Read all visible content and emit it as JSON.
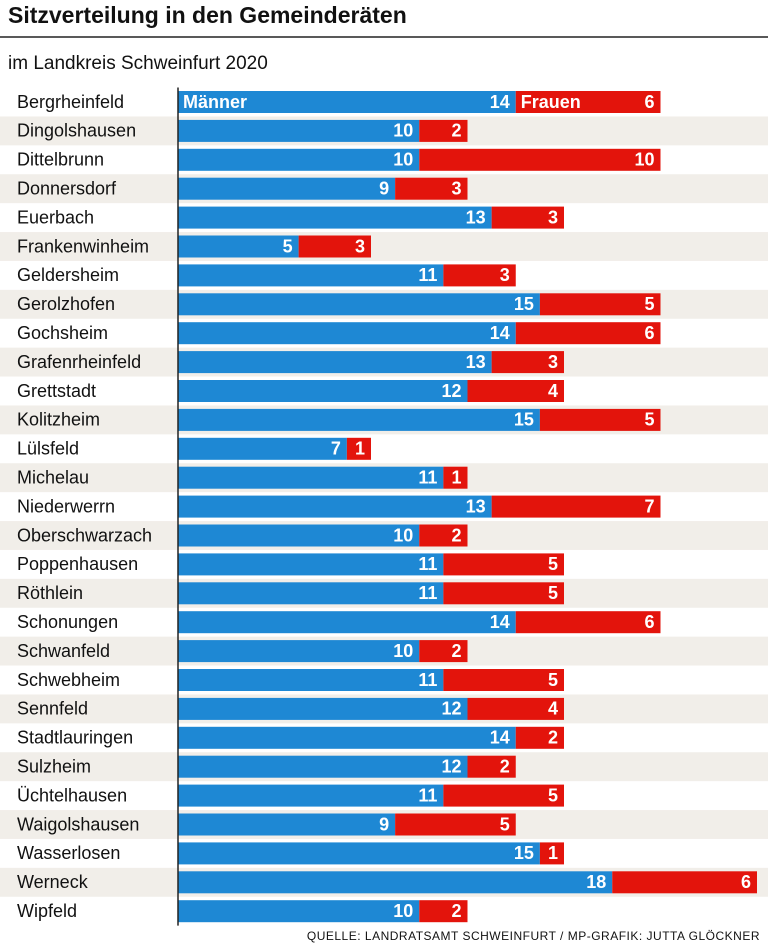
{
  "chart_data": {
    "type": "stacked-bar-horizontal",
    "title": "Sitzverteilung in den Gemeinderäten",
    "subtitle": "im Landkreis Schweinfurt 2020",
    "source": "QUELLE: LANDRATSAMT SCHWEINFURT / MP-GRAFIK: JUTTA GLÖCKNER",
    "categories": [
      "Bergrheinfeld",
      "Dingolshausen",
      "Dittelbrunn",
      "Donnersdorf",
      "Euerbach",
      "Frankenwinheim",
      "Geldersheim",
      "Gerolzhofen",
      "Gochsheim",
      "Grafenrheinfeld",
      "Grettstadt",
      "Kolitzheim",
      "Lülsfeld",
      "Michelau",
      "Niederwerrn",
      "Oberschwarzach",
      "Poppenhausen",
      "Röthlein",
      "Schonungen",
      "Schwanfeld",
      "Schwebheim",
      "Sennfeld",
      "Stadtlauringen",
      "Sulzheim",
      "Üchtelhausen",
      "Waigolshausen",
      "Wasserlosen",
      "Werneck",
      "Wipfeld"
    ],
    "series": [
      {
        "name": "Männer",
        "color": "#1e88d4",
        "values": [
          14,
          10,
          10,
          9,
          13,
          5,
          11,
          15,
          14,
          13,
          12,
          15,
          7,
          11,
          13,
          10,
          11,
          11,
          14,
          10,
          11,
          12,
          14,
          12,
          11,
          9,
          15,
          18,
          10
        ]
      },
      {
        "name": "Frauen",
        "color": "#e3140c",
        "values": [
          6,
          2,
          10,
          3,
          3,
          3,
          3,
          5,
          6,
          3,
          4,
          5,
          1,
          1,
          7,
          2,
          5,
          5,
          6,
          2,
          5,
          4,
          2,
          2,
          5,
          5,
          1,
          6,
          2
        ]
      }
    ]
  }
}
